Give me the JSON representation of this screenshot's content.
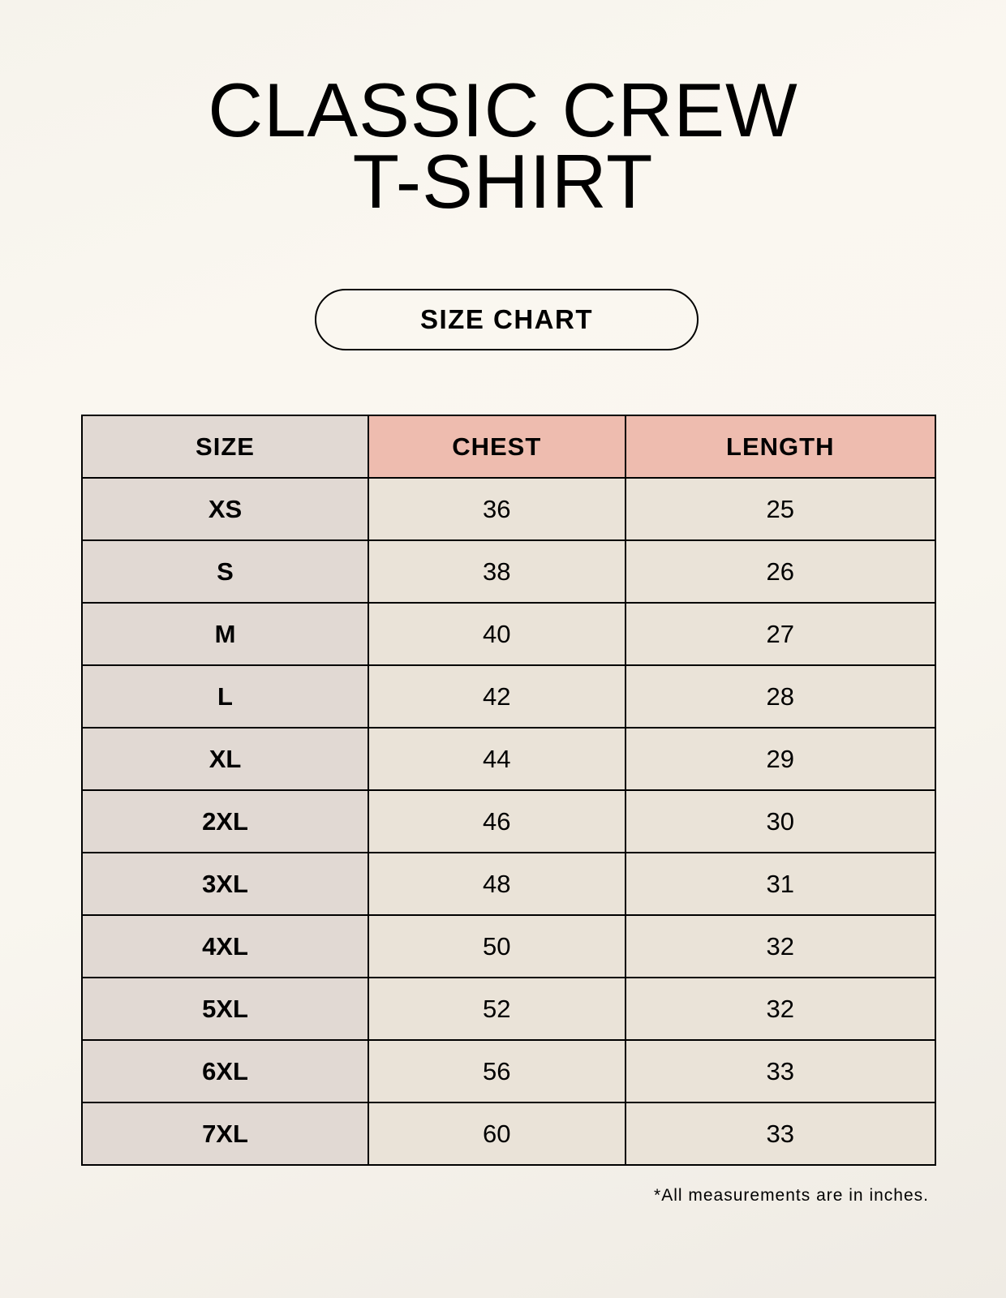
{
  "title": {
    "line1": "CLASSIC CREW",
    "line2": "T-SHIRT"
  },
  "subtitle": "SIZE CHART",
  "table": {
    "headers": [
      "SIZE",
      "CHEST",
      "LENGTH"
    ],
    "rows": [
      [
        "XS",
        "36",
        "25"
      ],
      [
        "S",
        "38",
        "26"
      ],
      [
        "M",
        "40",
        "27"
      ],
      [
        "L",
        "42",
        "28"
      ],
      [
        "XL",
        "44",
        "29"
      ],
      [
        "2XL",
        "46",
        "30"
      ],
      [
        "3XL",
        "48",
        "31"
      ],
      [
        "4XL",
        "50",
        "32"
      ],
      [
        "5XL",
        "52",
        "32"
      ],
      [
        "6XL",
        "56",
        "33"
      ],
      [
        "7XL",
        "60",
        "33"
      ]
    ]
  },
  "footnote": "*All measurements are in inches.",
  "colors": {
    "header_accent": "#eebcaf",
    "size_column": "#e1d9d3",
    "cell": "#eae3d8"
  }
}
